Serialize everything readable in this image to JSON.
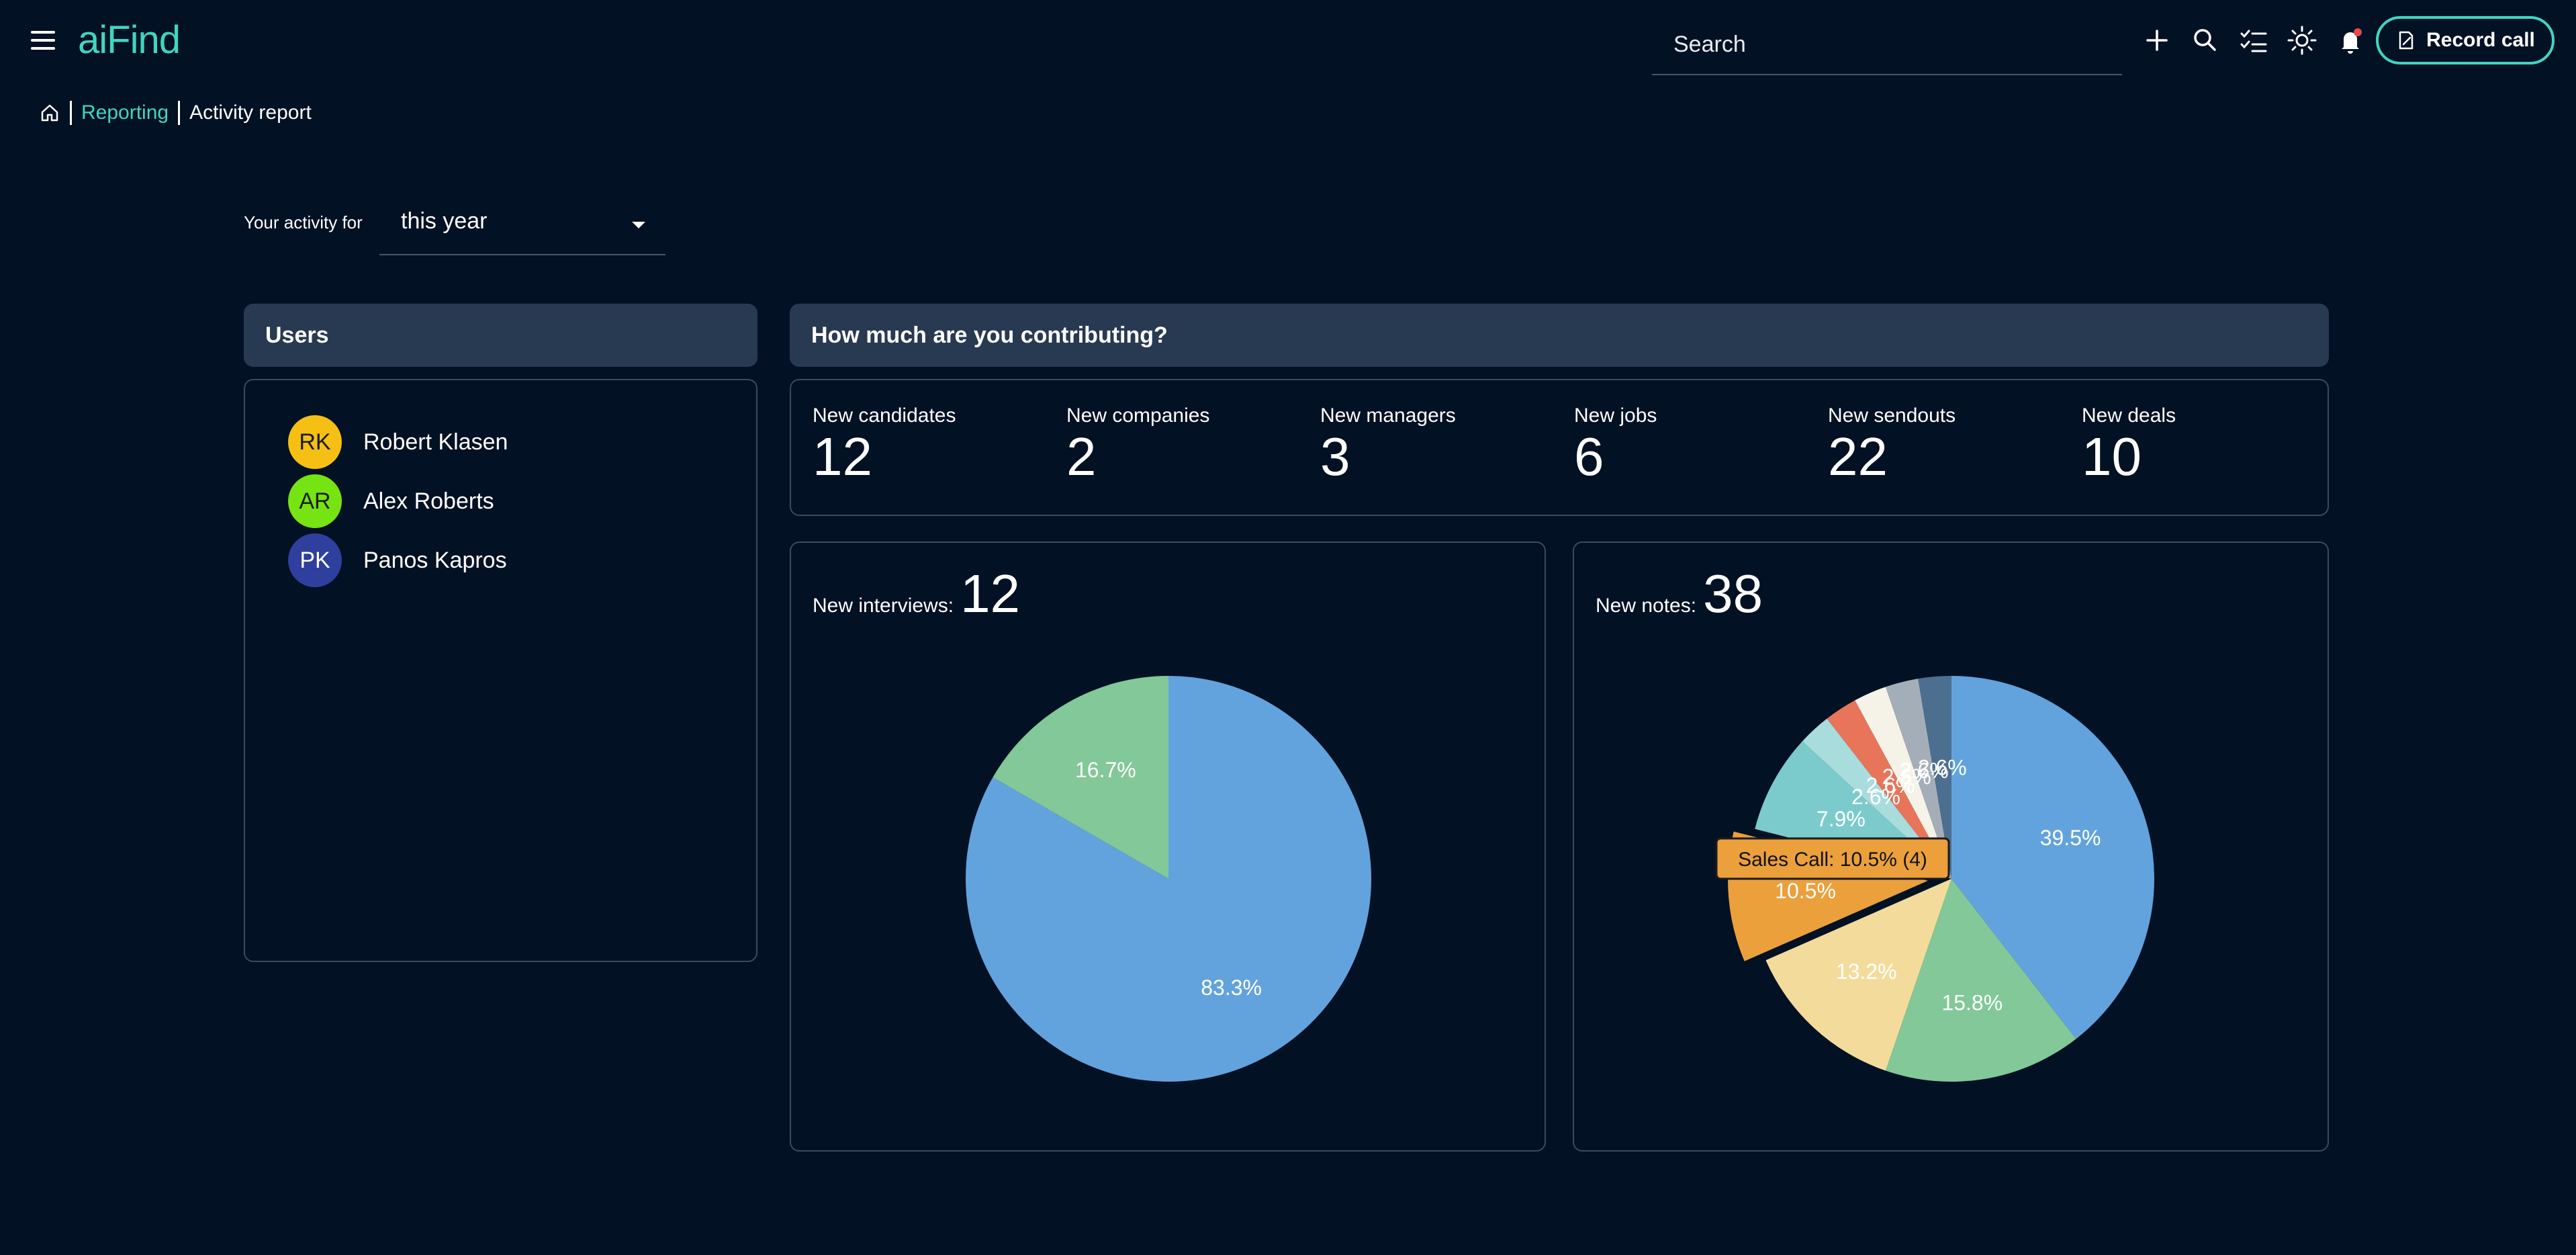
{
  "app": {
    "logo": "aiFind"
  },
  "search": {
    "placeholder": "Search"
  },
  "header": {
    "record_call_label": "Record call"
  },
  "breadcrumb": {
    "link": "Reporting",
    "current": "Activity report"
  },
  "period": {
    "label": "Your activity for",
    "value": "this year"
  },
  "users_panel": {
    "title": "Users",
    "users": [
      {
        "initials": "RK",
        "name": "Robert Klasen",
        "color": "#f5c013",
        "text_color": "#1a1a1a"
      },
      {
        "initials": "AR",
        "name": "Alex Roberts",
        "color": "#76e312",
        "text_color": "#1a1a1a"
      },
      {
        "initials": "PK",
        "name": "Panos Kapros",
        "color": "#2f3f9e",
        "text_color": "#ffffff"
      }
    ]
  },
  "contribution_panel": {
    "title": "How much are you contributing?",
    "stats": [
      {
        "label": "New candidates",
        "value": "12"
      },
      {
        "label": "New companies",
        "value": "2"
      },
      {
        "label": "New managers",
        "value": "3"
      },
      {
        "label": "New jobs",
        "value": "6"
      },
      {
        "label": "New sendouts",
        "value": "22"
      },
      {
        "label": "New deals",
        "value": "10"
      }
    ]
  },
  "chart_data": [
    {
      "type": "pie",
      "title": "New interviews:",
      "total": "12",
      "slices": [
        {
          "value": 10,
          "label": "83.3%",
          "color": "#62a3de"
        },
        {
          "value": 2,
          "label": "16.7%",
          "color": "#82c898"
        }
      ]
    },
    {
      "type": "pie",
      "title": "New notes:",
      "total": "38",
      "tooltip": "Sales Call: 10.5% (4)",
      "slices": [
        {
          "value": 15,
          "label": "39.5%",
          "color": "#62a3de"
        },
        {
          "value": 6,
          "label": "15.8%",
          "color": "#82c898"
        },
        {
          "value": 5,
          "label": "13.2%",
          "color": "#f3dc9b"
        },
        {
          "value": 4,
          "label": "10.5%",
          "color": "#eba03c",
          "name": "Sales Call",
          "highlighted": true
        },
        {
          "value": 3,
          "label": "7.9%",
          "color": "#7bcbcc"
        },
        {
          "value": 1,
          "label": "2.6%",
          "color": "#a9dcdd"
        },
        {
          "value": 1,
          "label": "2.6%",
          "color": "#e8745a"
        },
        {
          "value": 1,
          "label": "2.6%",
          "color": "#f5f3e8"
        },
        {
          "value": 1,
          "label": "2.6%",
          "color": "#a3aeb8"
        },
        {
          "value": 1,
          "label": "2.6%",
          "color": "#4c6f90"
        }
      ]
    }
  ]
}
